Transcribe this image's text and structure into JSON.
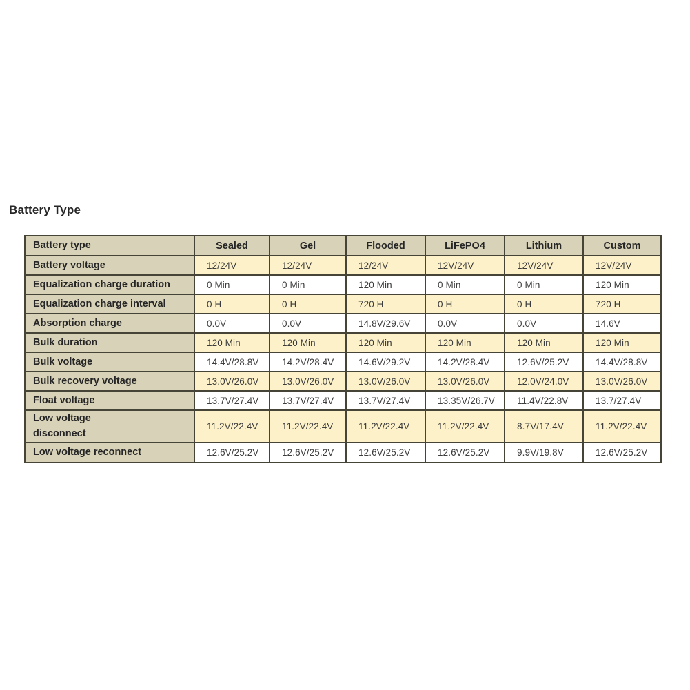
{
  "title": "Battery Type",
  "table": {
    "columns": [
      "Battery type",
      "Sealed",
      "Gel",
      "Flooded",
      "LiFePO4",
      "Lithium",
      "Custom"
    ],
    "rows": [
      {
        "label": "Battery voltage",
        "shade": "yellow",
        "tall": false,
        "values": [
          "12/24V",
          "12/24V",
          "12/24V",
          "12V/24V",
          "12V/24V",
          "12V/24V"
        ]
      },
      {
        "label": "Equalization charge duration",
        "shade": "white",
        "tall": false,
        "values": [
          "0 Min",
          "0 Min",
          "120 Min",
          "0 Min",
          "0 Min",
          "120 Min"
        ]
      },
      {
        "label": "Equalization charge interval",
        "shade": "yellow",
        "tall": false,
        "values": [
          "0 H",
          "0 H",
          "720 H",
          "0 H",
          "0 H",
          "720 H"
        ]
      },
      {
        "label": "Absorption charge",
        "shade": "white",
        "tall": false,
        "values": [
          "0.0V",
          "0.0V",
          "14.8V/29.6V",
          "0.0V",
          "0.0V",
          "14.6V"
        ]
      },
      {
        "label": "Bulk duration",
        "shade": "yellow",
        "tall": false,
        "values": [
          "120 Min",
          "120 Min",
          "120 Min",
          "120 Min",
          "120 Min",
          "120 Min"
        ]
      },
      {
        "label": "Bulk voltage",
        "shade": "white",
        "tall": false,
        "values": [
          "14.4V/28.8V",
          "14.2V/28.4V",
          "14.6V/29.2V",
          "14.2V/28.4V",
          "12.6V/25.2V",
          "14.4V/28.8V"
        ]
      },
      {
        "label": "Bulk recovery voltage",
        "shade": "yellow",
        "tall": false,
        "values": [
          "13.0V/26.0V",
          "13.0V/26.0V",
          "13.0V/26.0V",
          "13.0V/26.0V",
          "12.0V/24.0V",
          "13.0V/26.0V"
        ]
      },
      {
        "label": "Float voltage",
        "shade": "white",
        "tall": false,
        "values": [
          "13.7V/27.4V",
          "13.7V/27.4V",
          "13.7V/27.4V",
          "13.35V/26.7V",
          "11.4V/22.8V",
          "13.7/27.4V"
        ]
      },
      {
        "label": "Low voltage\ndisconnect",
        "shade": "yellow",
        "tall": true,
        "values": [
          "11.2V/22.4V",
          "11.2V/22.4V",
          "11.2V/22.4V",
          "11.2V/22.4V",
          "8.7V/17.4V",
          "11.2V/22.4V"
        ]
      },
      {
        "label": "Low voltage reconnect",
        "shade": "white",
        "tall": false,
        "values": [
          "12.6V/25.2V",
          "12.6V/25.2V",
          "12.6V/25.2V",
          "12.6V/25.2V",
          "9.9V/19.8V",
          "12.6V/25.2V"
        ]
      }
    ],
    "colors": {
      "header_bg": "#d8d3b8",
      "row_yellow": "#fcf1c8",
      "row_white": "#ffffff",
      "border": "#464437"
    }
  }
}
